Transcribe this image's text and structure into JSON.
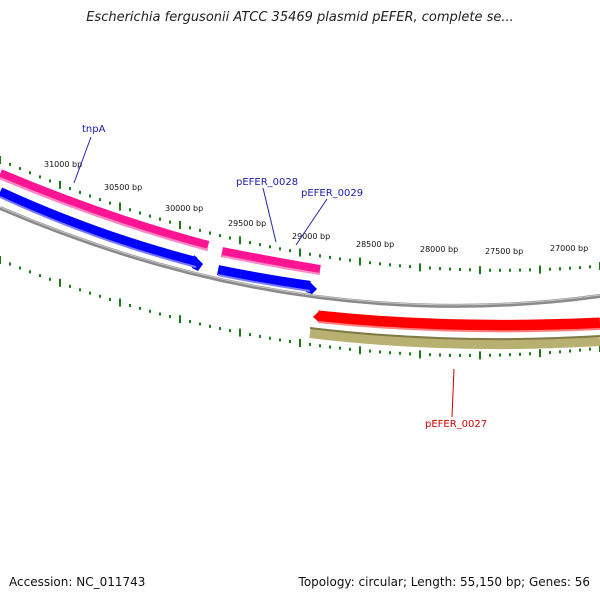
{
  "header": {
    "title": "Escherichia fergusonii ATCC 35469 plasmid pEFER, complete se..."
  },
  "footer": {
    "accession": "Accession: NC_011743",
    "summary": "Topology: circular; Length: 55,150 bp; Genes: 56"
  },
  "map": {
    "tick_labels": [
      "31000 bp",
      "30500 bp",
      "30000 bp",
      "29500 bp",
      "29000 bp",
      "28500 bp",
      "28000 bp",
      "27500 bp",
      "27000 bp"
    ],
    "genes": [
      {
        "name": "tnpA",
        "strand": "forward",
        "color": "#ff1493",
        "label_color": "#1a1aaa"
      },
      {
        "name": "pEFER_0028",
        "strand": "forward",
        "color": "#ff1493",
        "label_color": "#1a1aaa"
      },
      {
        "name": "pEFER_0029",
        "strand": "forward",
        "color": "#ff1493",
        "label_color": "#1a1aaa"
      },
      {
        "name": "pEFER_0027",
        "strand": "reverse",
        "color": "#ff0000",
        "label_color": "#cc0000"
      }
    ],
    "colors": {
      "forward_gene": "#ff1493",
      "forward_cds": "#0000ff",
      "reverse_gene": "#ff0000",
      "reverse_cds": "#b8b070",
      "backbone": "#888888",
      "ticks": "#1a7a1a"
    }
  }
}
